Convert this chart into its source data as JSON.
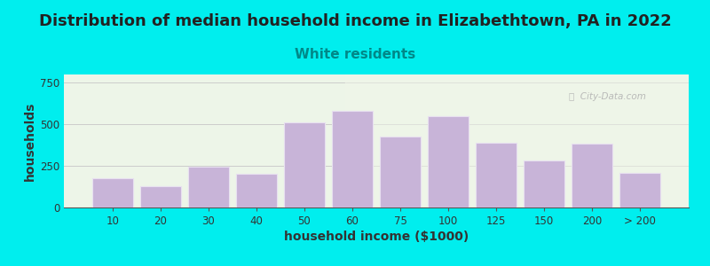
{
  "title": "Distribution of median household income in Elizabethtown, PA in 2022",
  "subtitle": "White residents",
  "xlabel": "household income ($1000)",
  "ylabel": "households",
  "background_outer": "#00EEEE",
  "background_inner": "#edf5e8",
  "bar_color": "#c8b4d8",
  "bar_edge_color": "#e8e0f0",
  "categories": [
    "10",
    "20",
    "30",
    "40",
    "50",
    "60",
    "75",
    "100",
    "125",
    "150",
    "200",
    "> 200"
  ],
  "values": [
    175,
    130,
    245,
    205,
    510,
    580,
    425,
    550,
    390,
    285,
    385,
    210
  ],
  "ylim": [
    0,
    800
  ],
  "yticks": [
    0,
    250,
    500,
    750
  ],
  "title_fontsize": 13,
  "subtitle_fontsize": 11,
  "subtitle_color": "#008888",
  "axis_label_fontsize": 10,
  "tick_fontsize": 8.5,
  "title_color": "#222222",
  "watermark_text": "ⓘ  City-Data.com",
  "watermark_color": "#b0b0b0"
}
